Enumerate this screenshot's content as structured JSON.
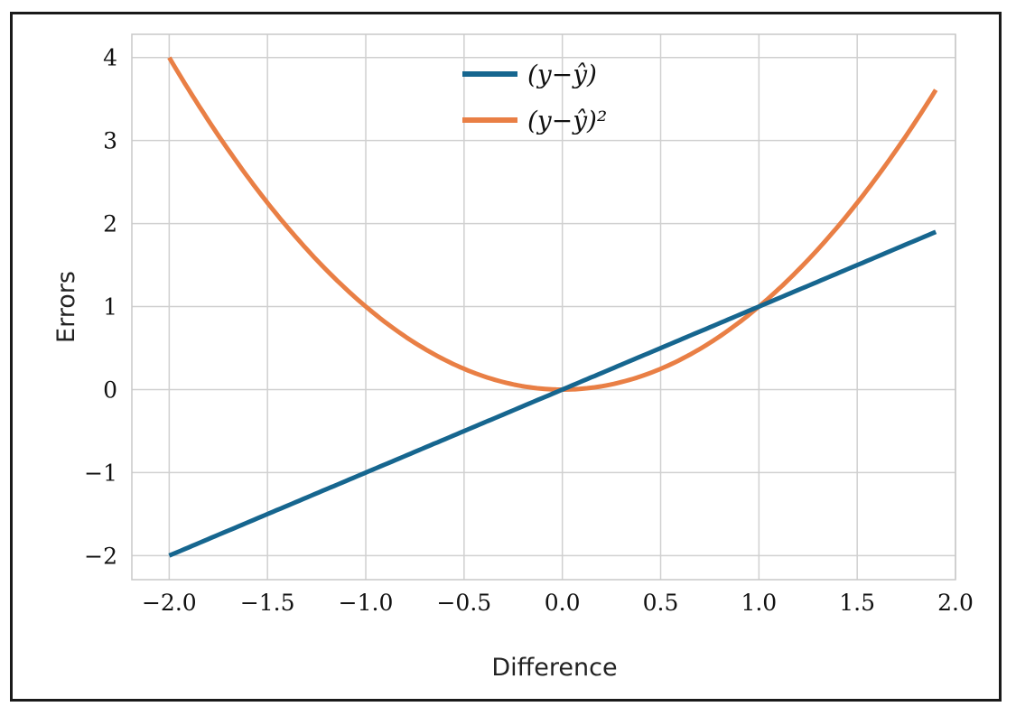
{
  "chart_data": {
    "type": "line",
    "title": "",
    "xlabel": "Difference",
    "ylabel": "Errors",
    "xlim": [
      -2.19,
      2.0
    ],
    "ylim": [
      -2.29,
      4.28
    ],
    "xticks": [
      -2.0,
      -1.5,
      -1.0,
      -0.5,
      0.0,
      0.5,
      1.0,
      1.5,
      2.0
    ],
    "xtick_labels": [
      "−2.0",
      "−1.5",
      "−1.0",
      "−0.5",
      "0.0",
      "0.5",
      "1.0",
      "1.5",
      "2.0"
    ],
    "yticks": [
      -2,
      -1,
      0,
      1,
      2,
      3,
      4
    ],
    "ytick_labels": [
      "−2",
      "−1",
      "0",
      "1",
      "2",
      "3",
      "4"
    ],
    "grid": true,
    "legend_position": "top-center",
    "x_range": [
      -2.0,
      1.9
    ],
    "series": [
      {
        "name": "(y−ŷ)",
        "formula": "y = x",
        "color": "#16668f"
      },
      {
        "name": "(y−ŷ)²",
        "formula": "y = x^2",
        "color": "#e97f45"
      }
    ]
  }
}
